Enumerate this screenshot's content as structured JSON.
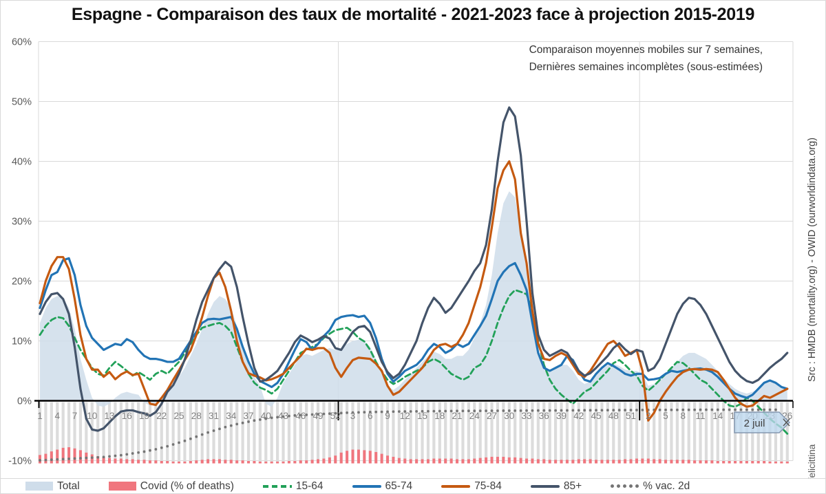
{
  "title": "Espagne - Comparaison des taux de mortalité - 2021-2023 face à projection 2015-2019",
  "annotation": {
    "line1": "Comparaison moyennes mobiles sur 7 semaines,",
    "line2": "Dernières semaines incomplètes (sous-estimées)"
  },
  "source_note": "Src : HMDB (mortality.org) - OWID (ourworldindata.org)",
  "credit": "@felicittina",
  "callout": {
    "label": "2 juil"
  },
  "legend": {
    "items": [
      {
        "label": "Total",
        "style": "area",
        "color": "#cfddea"
      },
      {
        "label": "Covid (% of deaths)",
        "style": "area",
        "color": "#f0767e"
      },
      {
        "label": "15-64",
        "style": "dashed-line",
        "color": "#22a159"
      },
      {
        "label": "65-74",
        "style": "line",
        "color": "#2274b5"
      },
      {
        "label": "75-84",
        "style": "line",
        "color": "#c55a11"
      },
      {
        "label": "85+",
        "style": "line",
        "color": "#44546a"
      },
      {
        "label": "% vac. 2d",
        "style": "dots",
        "color": "#757575"
      }
    ]
  },
  "chart_data": {
    "type": "line",
    "title": "Espagne - Comparaison des taux de mortalité - 2021-2023 face à projection 2015-2019",
    "x_description": "Weeks of 2021 (1-52), 2022 (1-52) and 2023 (1-26, ending 2 July 2023)",
    "weeks_per_year": {
      "2021": 52,
      "2022": 52,
      "2023": 26
    },
    "ylim": [
      -10,
      60
    ],
    "grid": true,
    "legend_position": "bottom",
    "y_tick_labels": [
      "60%",
      "50%",
      "40%",
      "30%",
      "20%",
      "10%",
      "0%",
      "-10%"
    ],
    "x_tick_labels": [
      "1",
      "4",
      "7",
      "10",
      "13",
      "16",
      "19",
      "22",
      "25",
      "28",
      "31",
      "34",
      "37",
      "40",
      "43",
      "46",
      "49",
      "52",
      "3",
      "6",
      "9",
      "12",
      "15",
      "18",
      "21",
      "24",
      "27",
      "30",
      "33",
      "36",
      "39",
      "42",
      "45",
      "48",
      "51",
      "2",
      "5",
      "8",
      "11",
      "14",
      "17",
      "20",
      "23",
      "26"
    ],
    "x_tick_step_weeks": 3,
    "colors": {
      "total_area": "#cfddea",
      "covid_bars": "#f0767e",
      "s15_64": "#22a159",
      "s65_74": "#2274b5",
      "s75_84": "#c55a11",
      "s85plus": "#44546a",
      "vax_dots": "#757575",
      "gridline": "#d9d9d9",
      "week_bars": "#dcdcdc",
      "axis": "#000000"
    },
    "series": [
      {
        "name": "Total",
        "type": "area",
        "unit": "% excess mortality",
        "values": [
          13,
          15.5,
          17,
          17.5,
          17.2,
          15.5,
          12,
          7,
          3.5,
          0.5,
          -0.8,
          -1,
          -0.5,
          0.5,
          1.2,
          1.5,
          1.2,
          1,
          -0.3,
          -0.8,
          -0.3,
          0.5,
          1.5,
          2.5,
          4,
          5.5,
          7.5,
          9.5,
          12,
          14.5,
          16.5,
          17.5,
          17,
          15.5,
          12.5,
          9,
          6,
          4,
          2.5,
          -0.5,
          -1,
          0.5,
          3,
          4.5,
          6,
          7.5,
          7.8,
          7.5,
          8,
          8.5,
          8.8,
          8.5,
          8.8,
          9.5,
          10,
          10.2,
          10,
          9,
          7,
          4.5,
          2.5,
          1.8,
          2.5,
          3.5,
          4.5,
          5.5,
          6.5,
          7.5,
          8.2,
          7.8,
          7,
          7,
          7.5,
          7.5,
          8.5,
          10.5,
          13,
          16,
          21,
          28,
          33,
          35,
          34,
          28,
          22,
          14,
          8.5,
          6,
          5,
          5.5,
          6,
          6,
          5,
          3.5,
          2.8,
          3.2,
          4.2,
          5.2,
          6,
          6.2,
          5.8,
          5.2,
          5,
          5,
          4.5,
          2.5,
          2.8,
          3.5,
          4.5,
          5.5,
          6.5,
          7.5,
          8,
          8,
          7.5,
          7,
          6,
          5,
          3.8,
          2.8,
          2,
          1.5,
          1.2,
          1.5,
          2,
          2.8,
          3.2,
          3,
          2.5,
          2.2
        ]
      },
      {
        "name": "Covid (% of deaths)",
        "type": "bar",
        "unit": "% of deaths, scale 0-10 mapped to axis -10..0",
        "values": [
          1.4,
          1.6,
          2,
          2.3,
          2.6,
          2.7,
          2.5,
          2.2,
          1.8,
          1.5,
          1.2,
          1,
          0.9,
          0.8,
          0.8,
          0.7,
          0.7,
          0.6,
          0.6,
          0.5,
          0.5,
          0.4,
          0.4,
          0.3,
          0.3,
          0.3,
          0.4,
          0.5,
          0.6,
          0.7,
          0.7,
          0.7,
          0.6,
          0.6,
          0.5,
          0.5,
          0.4,
          0.4,
          0.3,
          0.3,
          0.3,
          0.3,
          0.3,
          0.4,
          0.4,
          0.5,
          0.5,
          0.6,
          0.7,
          0.8,
          1,
          1.3,
          1.8,
          2.1,
          2.3,
          2.3,
          2.2,
          2.1,
          1.9,
          1.6,
          1.3,
          1.1,
          0.9,
          0.8,
          0.7,
          0.7,
          0.7,
          0.7,
          0.8,
          0.8,
          0.8,
          0.8,
          0.7,
          0.7,
          0.7,
          0.8,
          0.9,
          1,
          1.1,
          1.1,
          1.1,
          1,
          1,
          0.9,
          0.8,
          0.8,
          0.7,
          0.7,
          0.6,
          0.6,
          0.6,
          0.6,
          0.6,
          0.7,
          0.7,
          0.7,
          0.6,
          0.6,
          0.6,
          0.6,
          0.6,
          0.7,
          0.7,
          0.8,
          0.8,
          0.8,
          0.7,
          0.7,
          0.6,
          0.6,
          0.6,
          0.6,
          0.6,
          0.5,
          0.5,
          0.5,
          0.5,
          0.4,
          0.4,
          0.4,
          0.4,
          0.4,
          0.4,
          0.4,
          0.4,
          0.4,
          0.3,
          0.3,
          0.3,
          0.3
        ]
      },
      {
        "name": "15-64",
        "type": "line",
        "dashed": true,
        "unit": "% excess mortality",
        "values": [
          11,
          12.5,
          13.5,
          14,
          13.8,
          12.5,
          10.5,
          8.5,
          7,
          5.5,
          4.5,
          4.2,
          5.5,
          6.5,
          5.8,
          5,
          4.2,
          4.8,
          4.2,
          3.5,
          4.5,
          5,
          4.5,
          5.5,
          6.5,
          8,
          9.5,
          11,
          12.2,
          12.5,
          12.8,
          13,
          12.5,
          11.5,
          9,
          6.5,
          4.5,
          3,
          2.2,
          1.8,
          1.2,
          2,
          3.5,
          5,
          6.5,
          8,
          8.5,
          9,
          9.5,
          10.5,
          11.2,
          11.8,
          12,
          12.2,
          11.5,
          10.5,
          9.9,
          8.5,
          6.5,
          4.9,
          3.5,
          2.8,
          3.3,
          4,
          4.5,
          5,
          5.5,
          6.5,
          7,
          6.5,
          5.5,
          4.5,
          4,
          3.5,
          4,
          5.5,
          6,
          7.5,
          10,
          13,
          15.5,
          17.5,
          18.5,
          18.2,
          17.8,
          15,
          10,
          6,
          3.5,
          2,
          1,
          0.2,
          -0.5,
          0.5,
          1.5,
          2,
          3,
          4,
          5,
          6.3,
          6.8,
          6,
          5,
          4.2,
          2.5,
          1.7,
          2.5,
          3.5,
          4.5,
          5.5,
          6.5,
          6.3,
          5.5,
          4.5,
          3.5,
          3,
          2,
          1,
          0,
          -0.8,
          -1,
          -0.5,
          0.5,
          0,
          -1,
          -2,
          -3,
          -3.8,
          -4.5,
          -5.5
        ]
      },
      {
        "name": "65-74",
        "type": "line",
        "unit": "% excess mortality",
        "values": [
          15.5,
          18.5,
          21,
          21.5,
          23.5,
          23.8,
          21,
          16,
          12.5,
          10.5,
          9.5,
          8.5,
          9,
          9.5,
          9.3,
          10.3,
          9.8,
          8.5,
          7.5,
          7,
          7,
          6.8,
          6.5,
          6.5,
          7,
          8.5,
          10,
          11.5,
          13,
          13.6,
          13.7,
          13.6,
          13.8,
          14,
          12,
          9,
          6.5,
          4.5,
          3.3,
          2.8,
          2.3,
          3,
          4.5,
          6.5,
          8.5,
          10.3,
          9.8,
          8.5,
          9.5,
          10.8,
          11.8,
          13.5,
          14,
          14.2,
          14.3,
          14,
          14.2,
          13,
          10.5,
          7,
          4.5,
          3.2,
          4,
          5,
          5.5,
          6,
          7,
          8.5,
          9.5,
          9,
          8,
          8.5,
          9.5,
          9,
          9.5,
          11,
          12.5,
          14.2,
          17,
          20,
          21.5,
          22.5,
          23,
          21,
          18.5,
          13,
          8,
          5.5,
          5,
          5.5,
          6,
          7.5,
          6.8,
          5,
          3.5,
          3.2,
          4.5,
          5.5,
          6.3,
          5.8,
          5.2,
          4.5,
          4.2,
          4.5,
          4.5,
          3.5,
          3.6,
          3.8,
          4.5,
          5,
          4.8,
          5,
          5.2,
          5.3,
          5.4,
          5.2,
          4.8,
          4,
          3,
          2,
          1.2,
          0.8,
          0.5,
          1,
          2,
          3,
          3.4,
          3,
          2.3,
          2
        ]
      },
      {
        "name": "75-84",
        "type": "line",
        "unit": "% excess mortality",
        "values": [
          16.3,
          20,
          22.5,
          24,
          24,
          22,
          17,
          11,
          7,
          5.2,
          5.2,
          4,
          4.8,
          3.6,
          4.4,
          4.9,
          4.3,
          4.5,
          2,
          -0.5,
          -0.7,
          0.5,
          1.8,
          3.5,
          5.1,
          6.8,
          8.4,
          11,
          14,
          17.5,
          20.5,
          21.4,
          19,
          15,
          10,
          6.5,
          4.6,
          4.2,
          3.9,
          3.4,
          3.6,
          4,
          4.5,
          5.5,
          6.5,
          7.5,
          8.7,
          8.5,
          8.8,
          8.8,
          8,
          5.5,
          4,
          5.5,
          6.8,
          7.2,
          7.1,
          7,
          6.2,
          5,
          2.5,
          1,
          1.5,
          2.5,
          3.5,
          4.5,
          5.5,
          7,
          8.5,
          9.3,
          9.5,
          9,
          9.5,
          11,
          13,
          16,
          19,
          23,
          29,
          35.5,
          38.5,
          40,
          37,
          28,
          23,
          15,
          9.5,
          7,
          6.8,
          7.5,
          8,
          7.5,
          6,
          4.5,
          4,
          5,
          6.5,
          8,
          9.5,
          10,
          9,
          7.5,
          8,
          8.5,
          5,
          -3.3,
          -2,
          0,
          1.5,
          2.8,
          4,
          4.8,
          5.2,
          5.3,
          5.2,
          5.3,
          5.2,
          4.8,
          3.5,
          2,
          0.5,
          -0.5,
          -1,
          -0.8,
          0,
          0.8,
          0.5,
          1,
          1.5,
          2
        ]
      },
      {
        "name": "85+",
        "type": "line",
        "unit": "% excess mortality",
        "values": [
          14.5,
          16.5,
          17.8,
          18,
          17,
          14.5,
          9,
          2,
          -3,
          -4.8,
          -5,
          -4.6,
          -3.6,
          -2.6,
          -1.8,
          -1.6,
          -1.6,
          -1.9,
          -2.1,
          -2.5,
          -1.9,
          -0.5,
          1.5,
          2.6,
          4.5,
          6.9,
          10,
          13.5,
          16.5,
          18.5,
          20.5,
          22,
          23.2,
          22.4,
          19,
          14,
          9.5,
          5.5,
          3.2,
          3.5,
          4.2,
          5,
          6.5,
          8,
          9.8,
          10.9,
          10.4,
          9.8,
          10.2,
          10.8,
          10.4,
          8.8,
          8.5,
          10,
          11.5,
          12.3,
          12.5,
          11.5,
          9,
          6.5,
          4.8,
          3.8,
          4.5,
          6,
          8,
          10,
          13,
          15.5,
          17.2,
          16.2,
          14.7,
          15.5,
          17,
          18.5,
          20,
          21.7,
          23,
          26,
          32,
          40,
          46.5,
          49,
          47.5,
          41,
          30,
          18,
          11,
          8.5,
          7.5,
          8,
          8.5,
          8,
          6.5,
          5,
          4.2,
          4.6,
          5.5,
          6.5,
          7.5,
          8.8,
          9.6,
          8.6,
          7.8,
          8.5,
          8.2,
          5,
          5.5,
          7,
          9.5,
          12,
          14.5,
          16.2,
          17.2,
          17,
          16,
          14.5,
          12.5,
          10.5,
          8.5,
          6.5,
          5,
          4,
          3.3,
          3,
          3.5,
          4.5,
          5.5,
          6.3,
          7,
          8
        ]
      },
      {
        "name": "% vac. 2d",
        "type": "dots",
        "unit": "% vaccinated 2 doses, scale 0-100 mapped to axis -10..0",
        "values": [
          0.5,
          1,
          1.5,
          2,
          2.5,
          3,
          3.5,
          4,
          4.5,
          5,
          5.5,
          6,
          7,
          8,
          9,
          10.5,
          12,
          13.5,
          15,
          17,
          19,
          21.5,
          24,
          27,
          30,
          33,
          36.5,
          40,
          43.5,
          47,
          50,
          53,
          56,
          58.5,
          61,
          63,
          65,
          67,
          68.5,
          70,
          71.5,
          72.5,
          73.5,
          74.5,
          75.5,
          76,
          76.5,
          77,
          77.5,
          78,
          78.5,
          79,
          79.5,
          80,
          80.3,
          80.6,
          80.9,
          81.1,
          81.3,
          81.5,
          81.7,
          81.9,
          82,
          82.1,
          82.2,
          82.3,
          82.4,
          82.5,
          82.6,
          82.7,
          82.8,
          82.9,
          83,
          83,
          83.1,
          83.1,
          83.2,
          83.2,
          83.3,
          83.3,
          83.4,
          83.4,
          83.5,
          83.5,
          83.6,
          83.6,
          83.7,
          83.7,
          83.8,
          83.8,
          83.9,
          83.9,
          84,
          84,
          84.1,
          84.1,
          84.2,
          84.2,
          84.3,
          84.3,
          84.4,
          84.4,
          84.5,
          84.5,
          84.6,
          84.6,
          84.7,
          84.7,
          84.8,
          84.8,
          84.8,
          84.9,
          84.9,
          84.9,
          85,
          85,
          85,
          85,
          85,
          85,
          85,
          85,
          85,
          85,
          85,
          85,
          85,
          85
        ]
      }
    ],
    "annotations": [
      {
        "text": "2 juil",
        "anchor": "last x-axis point (week 26, 2023)"
      }
    ]
  }
}
